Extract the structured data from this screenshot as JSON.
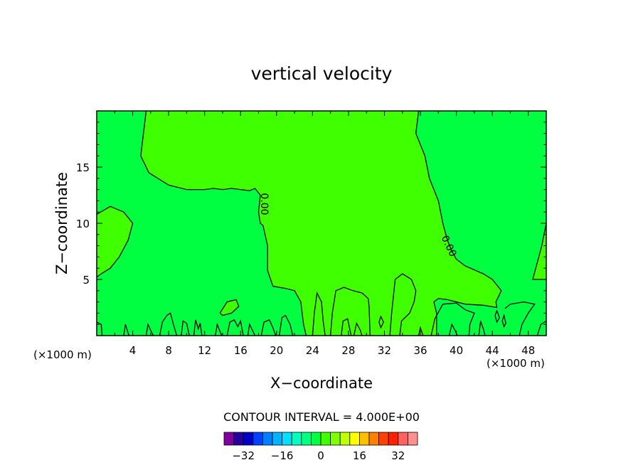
{
  "chart_data": {
    "type": "contour",
    "title": "vertical velocity",
    "xlabel": "X−coordinate",
    "ylabel": "Z−coordinate",
    "x_unit_left": "(×1000 m)",
    "x_unit_right": "(×1000 m)",
    "xlim": [
      0,
      50
    ],
    "ylim": [
      0,
      20
    ],
    "x_ticks": [
      4,
      8,
      12,
      16,
      20,
      24,
      28,
      32,
      36,
      40,
      44,
      48
    ],
    "y_ticks": [
      5,
      10,
      15
    ],
    "contour_label": "0.00",
    "contour_interval_text": "CONTOUR INTERVAL = 4.000E+00",
    "colorbar": {
      "min": -40,
      "step": 4,
      "colors": [
        "#8000a0",
        "#2800a0",
        "#0000c8",
        "#0040ff",
        "#0080ff",
        "#00b4ff",
        "#00e0ff",
        "#00ffc0",
        "#00ff80",
        "#00ff40",
        "#40ff00",
        "#80ff00",
        "#c0ff00",
        "#ffff00",
        "#ffc000",
        "#ff8000",
        "#ff4000",
        "#ff2000",
        "#ff6060",
        "#ff9090"
      ],
      "tick_values": [
        -32,
        -16,
        0,
        16,
        32
      ],
      "tick_labels": [
        "−32",
        "−16",
        "0",
        "16",
        "32"
      ]
    },
    "fill_colors": {
      "negative": "#00ff40",
      "positive": "#40ff00"
    },
    "regions": [
      {
        "sign": "positive",
        "points": [
          [
            5.5,
            20
          ],
          [
            4.9,
            16
          ],
          [
            5.8,
            14.5
          ],
          [
            8,
            13.4
          ],
          [
            10,
            13
          ],
          [
            12,
            13
          ],
          [
            13,
            13.1
          ],
          [
            14,
            13
          ],
          [
            15,
            13.1
          ],
          [
            16,
            13
          ],
          [
            17,
            12.9
          ],
          [
            17.6,
            13.1
          ],
          [
            18.2,
            12.5
          ],
          [
            18,
            11
          ],
          [
            18.2,
            10
          ],
          [
            18.5,
            9.8
          ],
          [
            19,
            8
          ],
          [
            19,
            5.8
          ],
          [
            19.6,
            4.4
          ],
          [
            21,
            4.2
          ],
          [
            22,
            4
          ],
          [
            22.7,
            3
          ],
          [
            23,
            1
          ],
          [
            23.3,
            0
          ],
          [
            37.8,
            0
          ],
          [
            37.8,
            2
          ],
          [
            37.5,
            3
          ],
          [
            38,
            3.3
          ],
          [
            39,
            3.2
          ],
          [
            41,
            2.8
          ],
          [
            43,
            2.7
          ],
          [
            44.5,
            2.5
          ],
          [
            44.4,
            3
          ],
          [
            45,
            4
          ],
          [
            44,
            5
          ],
          [
            43,
            5.5
          ],
          [
            41,
            6.2
          ],
          [
            40,
            6.8
          ],
          [
            39.5,
            7.5
          ],
          [
            39,
            8.5
          ],
          [
            38.5,
            10
          ],
          [
            38,
            12
          ],
          [
            37,
            14
          ],
          [
            36.5,
            16
          ],
          [
            36,
            17
          ],
          [
            35.5,
            18
          ],
          [
            35.8,
            20
          ]
        ]
      },
      {
        "sign": "positive",
        "points": [
          [
            0,
            10.8
          ],
          [
            1.5,
            11.5
          ],
          [
            3,
            11
          ],
          [
            4,
            10
          ],
          [
            3.5,
            8.5
          ],
          [
            2.5,
            7
          ],
          [
            1.5,
            6
          ],
          [
            0.5,
            5.5
          ],
          [
            0,
            5.2
          ]
        ]
      },
      {
        "sign": "positive",
        "points": [
          [
            48.5,
            5
          ],
          [
            49,
            6.5
          ],
          [
            49.5,
            8
          ],
          [
            50,
            10
          ],
          [
            50,
            5
          ]
        ]
      },
      {
        "sign": "positive",
        "points": [
          [
            13.7,
            2
          ],
          [
            14.5,
            3
          ],
          [
            15.5,
            3.2
          ],
          [
            15.8,
            2.6
          ],
          [
            15,
            2
          ],
          [
            14,
            1.8
          ]
        ]
      },
      {
        "sign": "positive",
        "points": [
          [
            31.4,
            1.2
          ],
          [
            31.6,
            1.7
          ],
          [
            31.9,
            1.2
          ],
          [
            31.6,
            0.7
          ]
        ]
      }
    ],
    "contour_lines": [
      [
        [
          5.5,
          20
        ],
        [
          4.9,
          16
        ],
        [
          5.8,
          14.5
        ],
        [
          8,
          13.4
        ],
        [
          10,
          13
        ],
        [
          12,
          13
        ],
        [
          13,
          13.1
        ],
        [
          14,
          13
        ],
        [
          15,
          13.1
        ],
        [
          16,
          13
        ],
        [
          17,
          12.9
        ],
        [
          17.6,
          13.1
        ],
        [
          18.2,
          12.5
        ],
        [
          18,
          11
        ],
        [
          18.2,
          10
        ],
        [
          18.5,
          9.8
        ],
        [
          19,
          8
        ],
        [
          19,
          5.8
        ],
        [
          19.6,
          4.4
        ],
        [
          21,
          4.2
        ],
        [
          22,
          4
        ],
        [
          22.7,
          3
        ],
        [
          23,
          1
        ],
        [
          23.3,
          0
        ]
      ],
      [
        [
          35.8,
          20
        ],
        [
          35.5,
          18
        ],
        [
          36,
          17
        ],
        [
          36.5,
          16
        ],
        [
          37,
          14
        ],
        [
          38,
          12
        ],
        [
          38.5,
          10
        ],
        [
          39,
          8.5
        ],
        [
          39.5,
          7.5
        ],
        [
          40,
          6.8
        ],
        [
          41,
          6.2
        ],
        [
          43,
          5.5
        ],
        [
          44,
          5
        ],
        [
          45,
          4
        ],
        [
          44.4,
          3
        ],
        [
          44.5,
          2.5
        ],
        [
          43,
          2.7
        ],
        [
          41,
          2.8
        ],
        [
          39,
          3.2
        ],
        [
          38,
          3.3
        ],
        [
          37.5,
          3
        ],
        [
          37.8,
          2
        ],
        [
          37.8,
          0
        ]
      ],
      [
        [
          0,
          10.8
        ],
        [
          1.5,
          11.5
        ],
        [
          3,
          11
        ],
        [
          4,
          10
        ],
        [
          3.5,
          8.5
        ],
        [
          2.5,
          7
        ],
        [
          1.5,
          6
        ],
        [
          0.5,
          5.5
        ],
        [
          0,
          5.2
        ]
      ],
      [
        [
          50,
          10
        ],
        [
          49.5,
          8
        ],
        [
          49,
          6.5
        ],
        [
          48.5,
          5
        ],
        [
          50,
          5
        ]
      ],
      [
        [
          13.7,
          2
        ],
        [
          14.5,
          3
        ],
        [
          15.5,
          3.2
        ],
        [
          15.8,
          2.6
        ],
        [
          15,
          2
        ],
        [
          14,
          1.8
        ],
        [
          13.7,
          2
        ]
      ],
      [
        [
          31.4,
          1.2
        ],
        [
          31.6,
          1.7
        ],
        [
          31.9,
          1.2
        ],
        [
          31.6,
          0.7
        ],
        [
          31.4,
          1.2
        ]
      ],
      [
        [
          33.7,
          0
        ],
        [
          33.9,
          1.3
        ],
        [
          34.8,
          2
        ],
        [
          35.3,
          3
        ],
        [
          35.5,
          4
        ],
        [
          35,
          5
        ],
        [
          34,
          5.5
        ],
        [
          33.2,
          5
        ],
        [
          33,
          3.5
        ],
        [
          32.8,
          2
        ],
        [
          32.6,
          0
        ]
      ],
      [
        [
          26,
          0
        ],
        [
          26.2,
          2
        ],
        [
          26.6,
          4
        ],
        [
          27.5,
          4.3
        ],
        [
          28.5,
          4
        ],
        [
          29.5,
          3.8
        ],
        [
          30.2,
          3.3
        ],
        [
          30.3,
          2.5
        ],
        [
          30.4,
          0
        ]
      ],
      [
        [
          37.2,
          0
        ],
        [
          37.6,
          1.5
        ],
        [
          38.5,
          2.8
        ],
        [
          40,
          2.9
        ],
        [
          41,
          2.3
        ],
        [
          42,
          2
        ],
        [
          41.5,
          1
        ],
        [
          41.4,
          0
        ]
      ],
      [
        [
          47,
          0
        ],
        [
          47.3,
          1
        ],
        [
          48,
          2
        ],
        [
          48.7,
          2.8
        ],
        [
          47.5,
          3
        ],
        [
          46,
          2.8
        ],
        [
          45.4,
          2.4
        ]
      ],
      [
        [
          0,
          1.2
        ],
        [
          0.5,
          1
        ],
        [
          0.6,
          0
        ]
      ],
      [
        [
          3,
          0
        ],
        [
          3.2,
          1
        ],
        [
          3.5,
          0.2
        ],
        [
          3.6,
          0
        ]
      ],
      [
        [
          5.5,
          0
        ],
        [
          5.7,
          1
        ],
        [
          6.1,
          0.3
        ],
        [
          6.3,
          0
        ]
      ],
      [
        [
          7,
          0
        ],
        [
          7.3,
          1.2
        ],
        [
          7.8,
          1.8
        ],
        [
          8.2,
          2
        ],
        [
          8.6,
          0.8
        ],
        [
          8.9,
          0
        ]
      ],
      [
        [
          9.4,
          0
        ],
        [
          9.6,
          1.3
        ],
        [
          10,
          1.1
        ],
        [
          10.3,
          0
        ]
      ],
      [
        [
          10.8,
          0
        ],
        [
          11,
          1.4
        ],
        [
          11.3,
          0.6
        ],
        [
          11.5,
          1.1
        ],
        [
          11.7,
          0
        ]
      ],
      [
        [
          13.2,
          0
        ],
        [
          13.4,
          1
        ],
        [
          13.7,
          0.4
        ],
        [
          13.9,
          0
        ]
      ],
      [
        [
          14.5,
          0
        ],
        [
          14.8,
          1.2
        ],
        [
          15.3,
          1.4
        ],
        [
          15.7,
          0.8
        ],
        [
          16,
          1.3
        ],
        [
          16.3,
          0
        ]
      ],
      [
        [
          16.8,
          0
        ],
        [
          17,
          1
        ],
        [
          17.3,
          0.5
        ],
        [
          17.6,
          0
        ]
      ],
      [
        [
          18.3,
          0
        ],
        [
          18.6,
          1.2
        ],
        [
          19.2,
          1.4
        ],
        [
          19.6,
          0.7
        ],
        [
          19.9,
          0
        ]
      ],
      [
        [
          20.3,
          0
        ],
        [
          20.6,
          1.6
        ],
        [
          21,
          1.8
        ],
        [
          21.5,
          1
        ],
        [
          21.8,
          0
        ]
      ],
      [
        [
          24,
          0
        ],
        [
          24.2,
          2
        ],
        [
          24.5,
          3.8
        ],
        [
          25,
          3
        ],
        [
          25.2,
          1.2
        ],
        [
          25.4,
          0
        ]
      ],
      [
        [
          27.2,
          0
        ],
        [
          27.4,
          1.3
        ],
        [
          27.9,
          1.5
        ],
        [
          28.3,
          0
        ]
      ],
      [
        [
          28.6,
          0
        ],
        [
          28.9,
          1.1
        ],
        [
          29.3,
          0.5
        ],
        [
          29.5,
          0
        ]
      ],
      [
        [
          35.8,
          0
        ],
        [
          36,
          0.7
        ],
        [
          36.3,
          0
        ]
      ],
      [
        [
          39.2,
          0
        ],
        [
          39.5,
          1
        ],
        [
          39.9,
          0.4
        ],
        [
          40.1,
          0
        ]
      ],
      [
        [
          42.5,
          0
        ],
        [
          42.7,
          1.3
        ],
        [
          43,
          0.6
        ],
        [
          43.2,
          0
        ]
      ],
      [
        [
          44.3,
          1.8
        ],
        [
          44.5,
          2.2
        ],
        [
          44.8,
          1.6
        ],
        [
          44.5,
          1.2
        ],
        [
          44.3,
          1.8
        ]
      ],
      [
        [
          45.1,
          1.3
        ],
        [
          45.3,
          1.8
        ],
        [
          45.5,
          1.1
        ],
        [
          45.3,
          0.8
        ],
        [
          45.1,
          1.3
        ]
      ],
      [
        [
          49,
          0
        ],
        [
          49.4,
          1
        ],
        [
          50,
          1.3
        ]
      ]
    ]
  }
}
